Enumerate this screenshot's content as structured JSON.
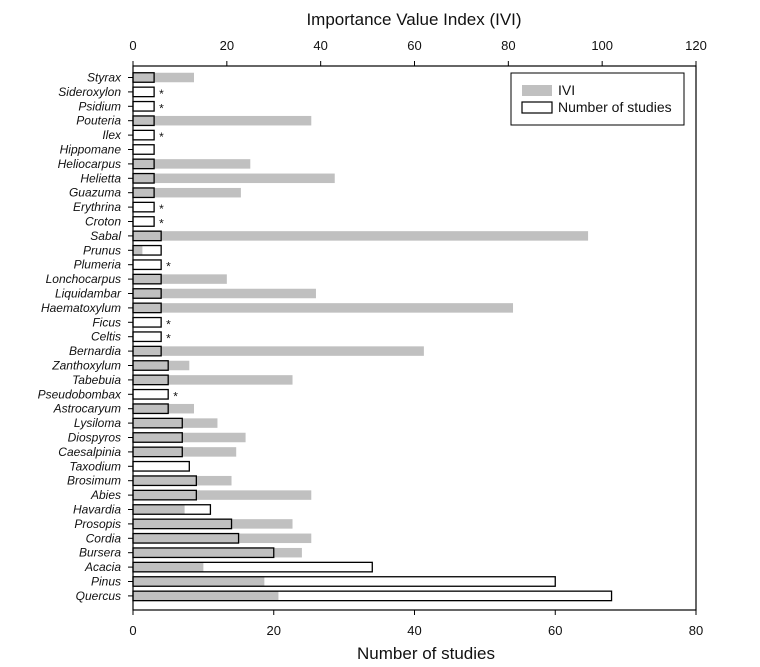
{
  "chart_data": {
    "type": "bar",
    "orientation": "horizontal",
    "top_axis_title": "Importance Value Index (IVI)",
    "bottom_axis_title": "Number of studies",
    "top_xlim": [
      0,
      120
    ],
    "bottom_xlim": [
      0,
      80
    ],
    "top_ticks": [
      "0",
      "20",
      "40",
      "60",
      "80",
      "100",
      "120"
    ],
    "bottom_ticks": [
      "0",
      "20",
      "40",
      "60",
      "80"
    ],
    "legend_position": "top-right",
    "grid": false,
    "colors": {
      "ivi": "#c0c0c0",
      "studies_fill": "#ffffff",
      "studies_stroke": "#000000"
    },
    "asterisk_label": "*",
    "categories": [
      "Styrax",
      "Sideroxylon",
      "Psidium",
      "Pouteria",
      "Ilex",
      "Hippomane",
      "Heliocarpus",
      "Helietta",
      "Guazuma",
      "Erythrina",
      "Croton",
      "Sabal",
      "Prunus",
      "Plumeria",
      "Lonchocarpus",
      "Liquidambar",
      "Haematoxylum",
      "Ficus",
      "Celtis",
      "Bernardia",
      "Zanthoxylum",
      "Tabebuia",
      "Pseudobombax",
      "Astrocaryum",
      "Lysiloma",
      "Diospyros",
      "Caesalpinia",
      "Taxodium",
      "Brosimum",
      "Abies",
      "Havardia",
      "Prosopis",
      "Cordia",
      "Bursera",
      "Acacia",
      "Pinus",
      "Quercus"
    ],
    "series": [
      {
        "name": "IVI",
        "axis": "top",
        "values": [
          13,
          0,
          0,
          38,
          0,
          0,
          25,
          43,
          23,
          0,
          0,
          97,
          2,
          0,
          20,
          39,
          81,
          0,
          0,
          62,
          12,
          34,
          0,
          13,
          18,
          24,
          22,
          0,
          21,
          38,
          11,
          34,
          38,
          36,
          15,
          28,
          31
        ]
      },
      {
        "name": "Number of studies",
        "axis": "bottom",
        "values": [
          3,
          3,
          3,
          3,
          3,
          3,
          3,
          3,
          3,
          3,
          3,
          4,
          4,
          4,
          4,
          4,
          4,
          4,
          4,
          4,
          5,
          5,
          5,
          5,
          7,
          7,
          7,
          8,
          9,
          9,
          11,
          14,
          15,
          20,
          34,
          60,
          68
        ]
      }
    ],
    "asterisk_categories": [
      "Sideroxylon",
      "Psidium",
      "Ilex",
      "Erythrina",
      "Croton",
      "Plumeria",
      "Ficus",
      "Celtis",
      "Pseudobombax"
    ]
  }
}
